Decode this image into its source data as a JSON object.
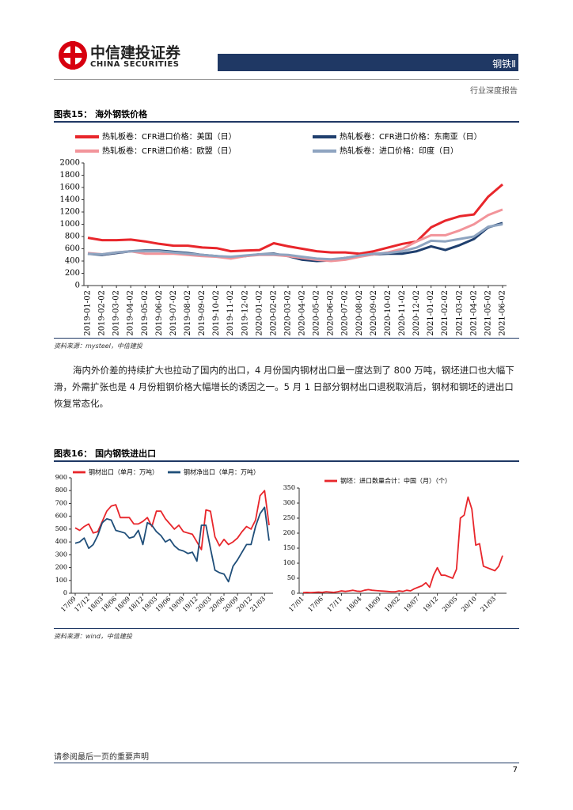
{
  "header": {
    "company_cn": "中信建投证券",
    "company_en": "CHINA SECURITIES",
    "sector": "钢铁Ⅱ",
    "report_type": "行业深度报告"
  },
  "figures": [
    {
      "label": "图表15：",
      "title": "海外钢铁价格",
      "source": "资料来源：mysteel，中信建投"
    },
    {
      "label": "图表16：",
      "title": "国内钢铁进出口",
      "source": "资料来源：wind，中信建投"
    }
  ],
  "paragraph": "海内外价差的持续扩大也拉动了国内的出口，4 月份国内钢材出口量一度达到了 800 万吨，钢坯进口也大幅下滑，外需扩张也是 4 月份粗钢价格大幅增长的诱因之一。5 月 1 日部分钢材出口退税取消后，钢材和钢坯的进出口恢复常态化。",
  "chart_data": [
    {
      "type": "line",
      "legend": "top",
      "label_rotation": -90,
      "categories": [
        "2019-01-02",
        "2019-02-02",
        "2019-03-02",
        "2019-04-02",
        "2019-05-02",
        "2019-06-02",
        "2019-07-02",
        "2019-08-02",
        "2019-09-02",
        "2019-10-02",
        "2019-11-02",
        "2019-12-02",
        "2020-01-02",
        "2020-02-02",
        "2020-03-02",
        "2020-04-02",
        "2020-05-02",
        "2020-06-02",
        "2020-07-02",
        "2020-08-02",
        "2020-09-02",
        "2020-10-02",
        "2020-11-02",
        "2020-12-02",
        "2021-01-02",
        "2021-02-02",
        "2021-03-02",
        "2021-04-02",
        "2021-05-02",
        "2021-06-02"
      ],
      "series": [
        {
          "name": "热轧板卷：CFR进口价格：美国（日）",
          "color": "#e8262b",
          "values": [
            780,
            740,
            740,
            750,
            720,
            680,
            650,
            650,
            620,
            610,
            560,
            570,
            580,
            690,
            640,
            600,
            560,
            540,
            540,
            520,
            560,
            620,
            680,
            720,
            950,
            1060,
            1130,
            1160,
            1450,
            1650
          ]
        },
        {
          "name": "热轧板卷：CFR进口价格：东南亚（日）",
          "color": "#1f3f6e",
          "values": [
            520,
            500,
            530,
            560,
            570,
            570,
            550,
            530,
            500,
            480,
            460,
            480,
            510,
            520,
            480,
            420,
            400,
            410,
            450,
            480,
            510,
            520,
            520,
            560,
            640,
            580,
            660,
            760,
            950,
            1020
          ]
        },
        {
          "name": "热轧板卷：CFR进口价格：欧盟（日）",
          "color": "#f2949a",
          "values": [
            530,
            510,
            540,
            560,
            520,
            520,
            520,
            500,
            480,
            470,
            440,
            480,
            500,
            500,
            480,
            450,
            420,
            400,
            420,
            470,
            510,
            540,
            600,
            720,
            820,
            820,
            900,
            1000,
            1150,
            1240
          ]
        },
        {
          "name": "热轧板卷：进口价格：印度（日）",
          "color": "#8ea4c0",
          "values": [
            520,
            510,
            540,
            560,
            560,
            560,
            540,
            520,
            500,
            480,
            470,
            490,
            510,
            510,
            500,
            470,
            440,
            430,
            450,
            490,
            520,
            530,
            560,
            620,
            730,
            720,
            760,
            800,
            960,
            1000
          ]
        }
      ],
      "ylim": [
        0,
        2000
      ],
      "yticks": [
        0,
        200,
        400,
        600,
        800,
        1000,
        1200,
        1400,
        1600,
        1800,
        2000
      ]
    },
    {
      "type": "line",
      "legend": "top",
      "label_rotation": -45,
      "categories": [
        "17/09",
        null,
        null,
        "17/12",
        null,
        null,
        "18/03",
        null,
        null,
        "18/06",
        null,
        null,
        "18/09",
        null,
        null,
        "18/12",
        null,
        null,
        "19/03",
        null,
        null,
        "19/06",
        null,
        null,
        "19/09",
        null,
        null,
        "19/12",
        null,
        null,
        "20/03",
        null,
        null,
        "20/06",
        null,
        null,
        "20/09",
        null,
        null,
        "20/12",
        null,
        null,
        "21/03",
        null
      ],
      "series": [
        {
          "name": "钢材出口（单月：万吨）",
          "color": "#e8262b",
          "values": [
            510,
            490,
            520,
            540,
            470,
            480,
            560,
            640,
            680,
            690,
            590,
            590,
            590,
            540,
            540,
            560,
            590,
            520,
            640,
            640,
            580,
            540,
            500,
            530,
            480,
            470,
            460,
            400,
            340,
            650,
            640,
            440,
            370,
            420,
            380,
            400,
            430,
            480,
            520,
            500,
            570,
            760,
            800,
            530
          ]
        },
        {
          "name": "钢材净出口（单月：万吨）",
          "color": "#1f4e79",
          "values": [
            390,
            400,
            430,
            350,
            380,
            450,
            550,
            580,
            570,
            490,
            480,
            470,
            430,
            440,
            490,
            380,
            550,
            530,
            480,
            450,
            400,
            420,
            370,
            340,
            330,
            310,
            320,
            250,
            530,
            530,
            350,
            180,
            160,
            150,
            90,
            210,
            260,
            320,
            380,
            380,
            520,
            620,
            670,
            410
          ]
        }
      ],
      "ylim": [
        0,
        900
      ],
      "yticks": [
        0,
        100,
        200,
        300,
        400,
        500,
        600,
        700,
        800,
        900
      ]
    },
    {
      "type": "line",
      "legend": "top",
      "label_rotation": -45,
      "categories": [
        "17/01",
        null,
        null,
        null,
        null,
        "17/06",
        null,
        null,
        null,
        null,
        "17/11",
        null,
        null,
        null,
        null,
        "18/04",
        null,
        null,
        null,
        null,
        "18/09",
        null,
        null,
        null,
        null,
        "19/02",
        null,
        null,
        null,
        null,
        "19/07",
        null,
        null,
        null,
        null,
        "19/12",
        null,
        null,
        null,
        null,
        "20/05",
        null,
        null,
        null,
        null,
        "20/10",
        null,
        null,
        null,
        null,
        "21/03",
        null,
        null
      ],
      "series": [
        {
          "name": "钢坯：进口数量合计：中国（月）（个）",
          "color": "#e8262b",
          "values": [
            2,
            3,
            2,
            3,
            4,
            3,
            5,
            4,
            3,
            5,
            8,
            6,
            8,
            10,
            7,
            6,
            10,
            12,
            10,
            9,
            8,
            7,
            6,
            5,
            5,
            8,
            6,
            10,
            8,
            15,
            20,
            25,
            35,
            20,
            60,
            85,
            60,
            60,
            55,
            50,
            80,
            250,
            260,
            320,
            280,
            160,
            165,
            90,
            85,
            80,
            75,
            90,
            125
          ]
        }
      ],
      "ylim": [
        0,
        350
      ],
      "yticks": [
        0,
        50,
        100,
        150,
        200,
        250,
        300,
        350
      ]
    }
  ],
  "footer": {
    "disclaimer": "请参阅最后一页的重要声明",
    "page": "7"
  }
}
